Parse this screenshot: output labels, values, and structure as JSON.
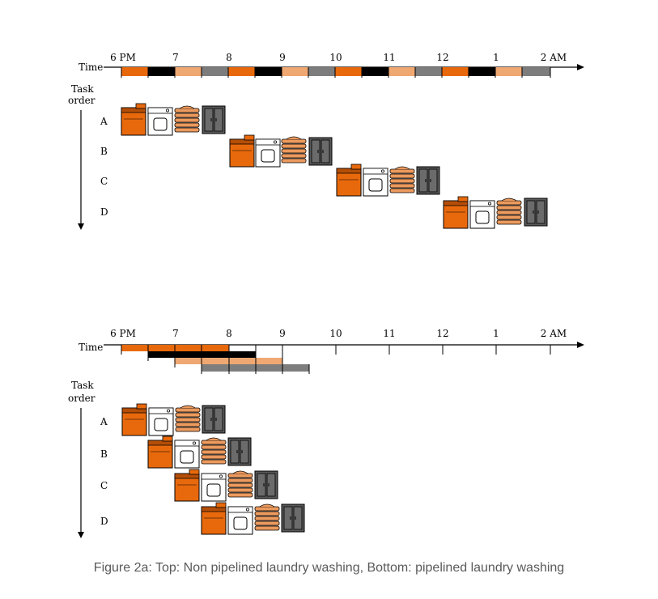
{
  "colors": {
    "washer": "#e8690c",
    "washer_light": "#f0a872",
    "dryer": "#ffffff",
    "folded": "#ec9a5e",
    "closet": "#595959",
    "bar_black": "#000000",
    "bar_gray": "#7d7d7d",
    "axis": "#000000"
  },
  "icons": [
    "washer-icon",
    "dryer-icon",
    "folded-clothes-icon",
    "closet-icon"
  ],
  "top": {
    "time_label": "Time",
    "task_order_label_1": "Task",
    "task_order_label_2": "order",
    "hour_labels": [
      "6 PM",
      "7",
      "8",
      "9",
      "10",
      "11",
      "12",
      "1",
      "2 AM"
    ],
    "tasks": [
      "A",
      "B",
      "C",
      "D"
    ]
  },
  "bottom": {
    "time_label": "Time",
    "task_order_label_1": "Task",
    "task_order_label_2": "order",
    "hour_labels": [
      "6 PM",
      "7",
      "8",
      "9",
      "10",
      "11",
      "12",
      "1",
      "2 AM"
    ],
    "tasks": [
      "A",
      "B",
      "C",
      "D"
    ]
  },
  "caption": "Figure 2a: Top: Non pipelined laundry washing, Bottom: pipelined laundry washing"
}
